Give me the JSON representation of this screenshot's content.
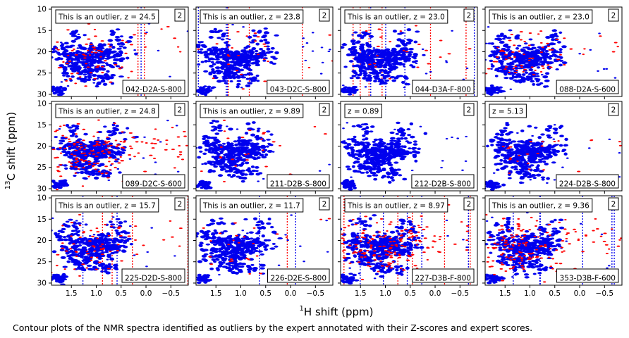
{
  "chart_data": {
    "type": "scatter",
    "layout": {
      "rows": 3,
      "cols": 4
    },
    "xlabel_main": "H shift (ppm)",
    "xlabel_sup": "1",
    "ylabel_main": "C shift (ppm)",
    "ylabel_sup": "13",
    "xlim": [
      1.9,
      -0.85
    ],
    "ylim": [
      30.5,
      9.5
    ],
    "xticks": [
      1.5,
      1.0,
      0.5,
      0.0,
      -0.5
    ],
    "xtick_labels": [
      "1.5",
      "1.0",
      "0.5",
      "0.0",
      "−0.5"
    ],
    "yticks": [
      10,
      15,
      20,
      25,
      30
    ],
    "ytick_labels": [
      "10",
      "15",
      "20",
      "25",
      "30"
    ],
    "colors": {
      "reference": "#0000ee",
      "outlier": "#ff0000",
      "frame": "#000000"
    },
    "series_roles": [
      "reference spectrum (blue)",
      "sample spectrum deviations (red)"
    ],
    "panels": [
      {
        "label": "This is an outlier, z = 24.5",
        "score": "2",
        "sample": "042-D2A-S-800",
        "red_level": "medium",
        "streaks": "light"
      },
      {
        "label": "This is an outlier, z = 23.8",
        "score": "2",
        "sample": "043-D2C-S-800",
        "red_level": "low",
        "streaks": "medium"
      },
      {
        "label": "This is an outlier, z = 23.0",
        "score": "2",
        "sample": "044-D3A-F-800",
        "red_level": "low",
        "streaks": "heavy"
      },
      {
        "label": "This is an outlier, z = 23.0",
        "score": "2",
        "sample": "088-D2A-S-600",
        "red_level": "medium",
        "streaks": "none"
      },
      {
        "label": "This is an outlier, z = 24.8",
        "score": "2",
        "sample": "089-D2C-S-600",
        "red_level": "high",
        "streaks": "none"
      },
      {
        "label": "This is an outlier, z = 9.89",
        "score": "2",
        "sample": "211-D2B-S-800",
        "red_level": "low",
        "streaks": "none"
      },
      {
        "label": "z = 0.89",
        "score": "2",
        "sample": "212-D2B-S-800",
        "red_level": "none",
        "streaks": "none"
      },
      {
        "label": "z = 5.13",
        "score": "2",
        "sample": "224-D2B-S-800",
        "red_level": "low",
        "streaks": "none"
      },
      {
        "label": "This is an outlier, z = 15.7",
        "score": "2",
        "sample": "225-D2D-S-800",
        "red_level": "medium",
        "streaks": "medium"
      },
      {
        "label": "This is an outlier, z = 11.7",
        "score": "2",
        "sample": "226-D2E-S-800",
        "red_level": "low",
        "streaks": "light"
      },
      {
        "label": "This is an outlier, z = 8.97",
        "score": "2",
        "sample": "227-D3B-F-800",
        "red_level": "high",
        "streaks": "heavy"
      },
      {
        "label": "This is an outlier, z = 9.36",
        "score": "2",
        "sample": "353-D3B-F-600",
        "red_level": "high",
        "streaks": "medium"
      }
    ]
  },
  "caption": "Contour plots of the NMR spectra identified as outliers by the expert annotated with their Z-scores and expert scores."
}
